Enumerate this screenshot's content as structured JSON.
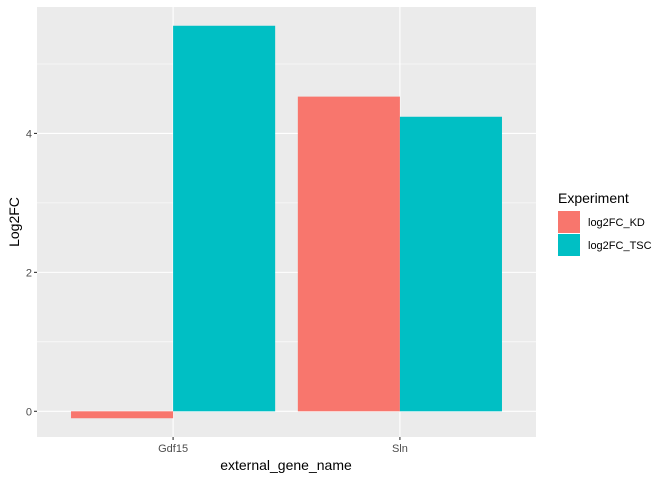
{
  "chart_data": {
    "type": "bar",
    "categories": [
      "Gdf15",
      "Sln"
    ],
    "series": [
      {
        "name": "log2FC_KD",
        "values": [
          -0.1,
          4.53
        ],
        "color": "#F8766D"
      },
      {
        "name": "log2FC_TSC",
        "values": [
          5.55,
          4.24
        ],
        "color": "#00BFC4"
      }
    ],
    "xlabel": "external_gene_name",
    "ylabel": "Log2FC",
    "ylim": [
      -0.37,
      5.82
    ],
    "yticks": [
      0,
      2,
      4
    ],
    "grid": true,
    "panel_background": "#EBEBEB",
    "grid_color": "#FFFFFF",
    "legend": {
      "title": "Experiment",
      "placement": "right"
    }
  }
}
